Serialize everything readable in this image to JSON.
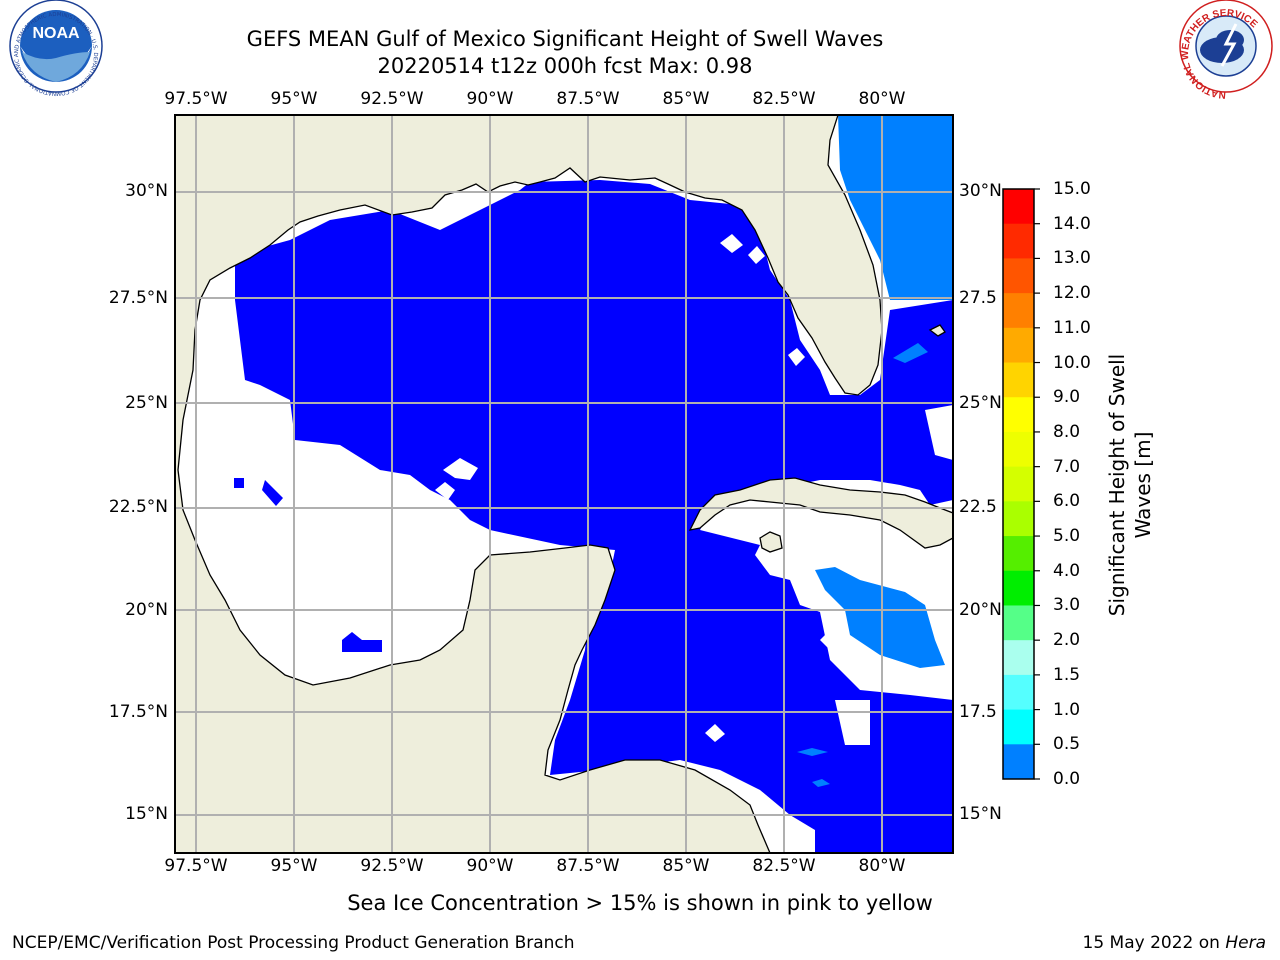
{
  "title": {
    "line1": "GEFS MEAN Gulf of Mexico Significant Height of Swell Waves",
    "line2": "20220514 t12z 000h fcst   Max: 0.98"
  },
  "map": {
    "lon_labels": [
      "97.5°W",
      "95°W",
      "92.5°W",
      "90°W",
      "87.5°W",
      "85°W",
      "82.5°W",
      "80°W"
    ],
    "lat_labels_left": [
      "30°N",
      "27.5°N",
      "25°N",
      "22.5°N",
      "20°N",
      "17.5°N",
      "15°N"
    ],
    "lat_labels_right": [
      "30°N",
      "27.5",
      "25°N",
      "22.5",
      "20°N",
      "17.5",
      "15°N"
    ],
    "colors": {
      "land": "#eeeedc",
      "swell_0_0_5": "#0000ff",
      "swell_0_5_1_0": "#0080ff",
      "no_data": "#ffffff",
      "gridline": "#b0b0b0",
      "coastline": "#000000"
    }
  },
  "colorbar": {
    "ticks": [
      "15.0",
      "14.0",
      "13.0",
      "12.0",
      "11.0",
      "10.0",
      "9.0",
      "8.0",
      "7.0",
      "6.0",
      "5.0",
      "4.0",
      "3.0",
      "2.0",
      "1.5",
      "1.0",
      "0.5",
      "0.0"
    ],
    "colors": [
      "#ff0000",
      "#ff2a00",
      "#ff5500",
      "#ff8000",
      "#ffaa00",
      "#ffd400",
      "#ffff00",
      "#eeff00",
      "#d4ff00",
      "#aaff00",
      "#55ee00",
      "#00ee00",
      "#55ff88",
      "#aaffee",
      "#55ffff",
      "#00ffff",
      "#0080ff",
      "#0000ff"
    ],
    "label_line1": "Significant Height of Swell",
    "label_line2": "Waves [m]"
  },
  "footer": {
    "note": "Sea Ice Concentration > 15% is shown in pink to yellow",
    "credit": "NCEP/EMC/Verification Post Processing Product Generation Branch",
    "date_prefix": "15 May 2022 on ",
    "host": "Hera"
  },
  "logos": {
    "noaa_text": "NOAA",
    "noaa_ring_text": "NATIONAL OCEANIC AND ATMOSPHERIC ADMINISTRATION · U.S. DEPARTMENT OF COMMERCE",
    "nws_ring_text": "NATIONAL WEATHER SERVICE"
  }
}
